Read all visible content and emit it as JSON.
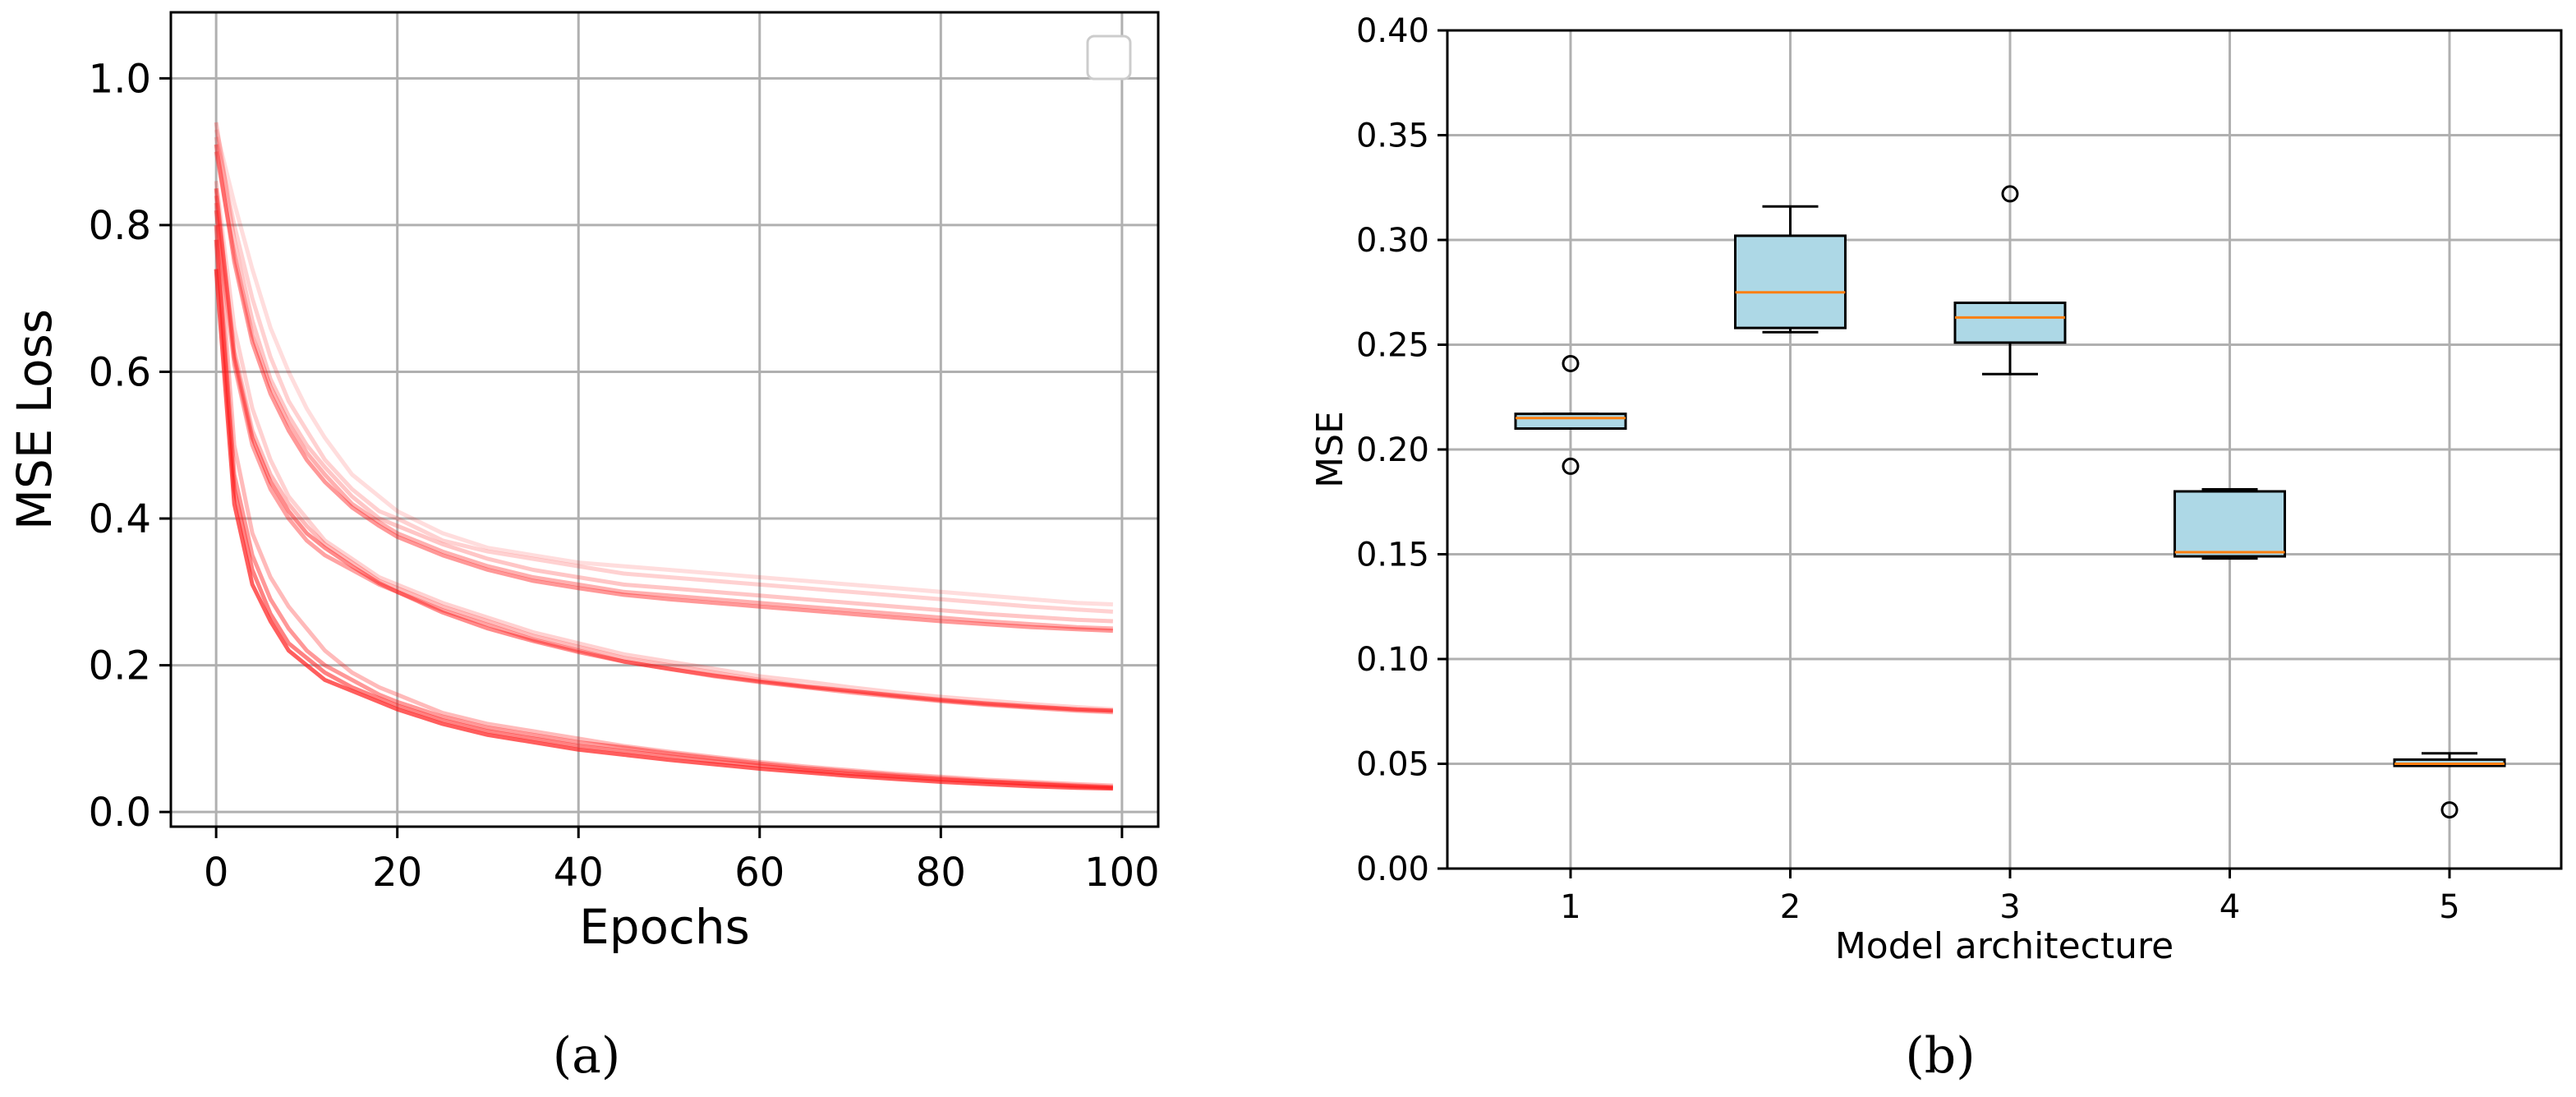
{
  "colors": {
    "loss_line": "#ff1a1a",
    "box_fill": "#add8e6",
    "median": "#ff7f0e",
    "grid": "#b0b0b0",
    "axis": "#000000"
  },
  "captions": {
    "left": "(a)",
    "right": "(b)"
  },
  "chart_data": [
    {
      "type": "line",
      "xlabel": "Epochs",
      "ylabel": "MSE Loss",
      "xlim": [
        -5,
        104
      ],
      "ylim": [
        -0.02,
        1.09
      ],
      "xticks": [
        0,
        20,
        40,
        60,
        80,
        100
      ],
      "xtick_labels": [
        "0",
        "20",
        "40",
        "60",
        "80",
        "100"
      ],
      "yticks": [
        0.0,
        0.2,
        0.4,
        0.6,
        0.8,
        1.0
      ],
      "ytick_labels": [
        "0.0",
        "0.2",
        "0.4",
        "0.6",
        "0.8",
        "1.0"
      ],
      "grid": true,
      "legend": {
        "placement": "top-right",
        "entries": []
      },
      "x": [
        0,
        2,
        4,
        6,
        8,
        10,
        12,
        15,
        18,
        20,
        25,
        30,
        35,
        40,
        45,
        50,
        55,
        60,
        65,
        70,
        75,
        80,
        85,
        90,
        95,
        99
      ],
      "series": [
        {
          "alpha": 0.15,
          "values": [
            0.93,
            0.83,
            0.74,
            0.66,
            0.6,
            0.55,
            0.51,
            0.46,
            0.43,
            0.41,
            0.38,
            0.36,
            0.35,
            0.34,
            0.335,
            0.33,
            0.325,
            0.32,
            0.315,
            0.31,
            0.305,
            0.3,
            0.295,
            0.29,
            0.285,
            0.283
          ]
        },
        {
          "alpha": 0.2,
          "values": [
            0.92,
            0.8,
            0.7,
            0.62,
            0.56,
            0.52,
            0.48,
            0.44,
            0.41,
            0.4,
            0.37,
            0.355,
            0.345,
            0.335,
            0.325,
            0.32,
            0.315,
            0.31,
            0.305,
            0.3,
            0.295,
            0.29,
            0.285,
            0.28,
            0.276,
            0.273
          ]
        },
        {
          "alpha": 0.25,
          "values": [
            0.94,
            0.78,
            0.67,
            0.59,
            0.54,
            0.5,
            0.47,
            0.43,
            0.4,
            0.39,
            0.365,
            0.345,
            0.33,
            0.32,
            0.31,
            0.305,
            0.3,
            0.295,
            0.29,
            0.285,
            0.28,
            0.275,
            0.27,
            0.266,
            0.262,
            0.26
          ]
        },
        {
          "alpha": 0.35,
          "values": [
            0.9,
            0.76,
            0.65,
            0.58,
            0.53,
            0.49,
            0.46,
            0.42,
            0.395,
            0.38,
            0.355,
            0.335,
            0.32,
            0.31,
            0.3,
            0.295,
            0.29,
            0.285,
            0.28,
            0.275,
            0.27,
            0.265,
            0.26,
            0.256,
            0.252,
            0.25
          ]
        },
        {
          "alpha": 0.45,
          "values": [
            0.91,
            0.75,
            0.64,
            0.57,
            0.52,
            0.48,
            0.45,
            0.415,
            0.39,
            0.375,
            0.35,
            0.33,
            0.315,
            0.305,
            0.296,
            0.29,
            0.285,
            0.28,
            0.275,
            0.27,
            0.265,
            0.26,
            0.256,
            0.252,
            0.249,
            0.247
          ]
        },
        {
          "alpha": 0.2,
          "values": [
            0.86,
            0.66,
            0.55,
            0.48,
            0.43,
            0.4,
            0.37,
            0.345,
            0.32,
            0.31,
            0.285,
            0.265,
            0.245,
            0.23,
            0.215,
            0.205,
            0.195,
            0.185,
            0.178,
            0.17,
            0.163,
            0.157,
            0.152,
            0.147,
            0.143,
            0.14
          ]
        },
        {
          "alpha": 0.3,
          "values": [
            0.84,
            0.63,
            0.52,
            0.46,
            0.42,
            0.39,
            0.365,
            0.34,
            0.315,
            0.305,
            0.28,
            0.26,
            0.24,
            0.225,
            0.21,
            0.2,
            0.19,
            0.18,
            0.172,
            0.165,
            0.158,
            0.152,
            0.147,
            0.143,
            0.14,
            0.138
          ]
        },
        {
          "alpha": 0.4,
          "values": [
            0.82,
            0.61,
            0.5,
            0.44,
            0.4,
            0.37,
            0.35,
            0.33,
            0.31,
            0.3,
            0.275,
            0.255,
            0.235,
            0.22,
            0.205,
            0.195,
            0.185,
            0.177,
            0.17,
            0.163,
            0.157,
            0.151,
            0.146,
            0.142,
            0.138,
            0.136
          ]
        },
        {
          "alpha": 0.5,
          "values": [
            0.85,
            0.62,
            0.51,
            0.45,
            0.41,
            0.38,
            0.36,
            0.335,
            0.312,
            0.3,
            0.272,
            0.25,
            0.233,
            0.218,
            0.205,
            0.195,
            0.186,
            0.178,
            0.171,
            0.165,
            0.159,
            0.153,
            0.148,
            0.144,
            0.14,
            0.138
          ]
        },
        {
          "alpha": 0.3,
          "values": [
            0.83,
            0.5,
            0.38,
            0.32,
            0.28,
            0.25,
            0.22,
            0.19,
            0.17,
            0.16,
            0.135,
            0.12,
            0.11,
            0.1,
            0.09,
            0.082,
            0.075,
            0.068,
            0.062,
            0.057,
            0.052,
            0.048,
            0.044,
            0.041,
            0.038,
            0.036
          ]
        },
        {
          "alpha": 0.45,
          "values": [
            0.8,
            0.46,
            0.35,
            0.29,
            0.25,
            0.22,
            0.2,
            0.18,
            0.16,
            0.15,
            0.13,
            0.115,
            0.105,
            0.095,
            0.088,
            0.08,
            0.073,
            0.066,
            0.06,
            0.055,
            0.05,
            0.046,
            0.042,
            0.039,
            0.036,
            0.034
          ]
        },
        {
          "alpha": 0.55,
          "values": [
            0.78,
            0.44,
            0.33,
            0.27,
            0.23,
            0.21,
            0.19,
            0.17,
            0.155,
            0.145,
            0.125,
            0.11,
            0.1,
            0.09,
            0.083,
            0.076,
            0.069,
            0.063,
            0.057,
            0.052,
            0.048,
            0.044,
            0.041,
            0.038,
            0.035,
            0.033
          ]
        },
        {
          "alpha": 0.7,
          "values": [
            0.74,
            0.42,
            0.31,
            0.26,
            0.22,
            0.2,
            0.18,
            0.165,
            0.15,
            0.14,
            0.12,
            0.105,
            0.095,
            0.085,
            0.078,
            0.071,
            0.065,
            0.059,
            0.054,
            0.049,
            0.045,
            0.041,
            0.038,
            0.035,
            0.033,
            0.032
          ]
        }
      ]
    },
    {
      "type": "box",
      "xlabel": "Model architecture",
      "ylabel": "MSE",
      "ylim": [
        0.0,
        0.4
      ],
      "yticks": [
        0.0,
        0.05,
        0.1,
        0.15,
        0.2,
        0.25,
        0.3,
        0.35,
        0.4
      ],
      "ytick_labels": [
        "0.00",
        "0.05",
        "0.10",
        "0.15",
        "0.20",
        "0.25",
        "0.30",
        "0.35",
        "0.40"
      ],
      "categories": [
        "1",
        "2",
        "3",
        "4",
        "5"
      ],
      "grid": true,
      "boxes": [
        {
          "category": "1",
          "whisker_low": 0.21,
          "q1": 0.21,
          "median": 0.215,
          "q3": 0.217,
          "whisker_high": 0.217,
          "outliers": [
            0.241,
            0.192
          ]
        },
        {
          "category": "2",
          "whisker_low": 0.256,
          "q1": 0.258,
          "median": 0.275,
          "q3": 0.302,
          "whisker_high": 0.316,
          "outliers": []
        },
        {
          "category": "3",
          "whisker_low": 0.236,
          "q1": 0.251,
          "median": 0.263,
          "q3": 0.27,
          "whisker_high": 0.27,
          "outliers": [
            0.322
          ]
        },
        {
          "category": "4",
          "whisker_low": 0.148,
          "q1": 0.149,
          "median": 0.151,
          "q3": 0.18,
          "whisker_high": 0.181,
          "outliers": []
        },
        {
          "category": "5",
          "whisker_low": 0.049,
          "q1": 0.049,
          "median": 0.05,
          "q3": 0.052,
          "whisker_high": 0.055,
          "outliers": [
            0.028
          ]
        }
      ]
    }
  ]
}
